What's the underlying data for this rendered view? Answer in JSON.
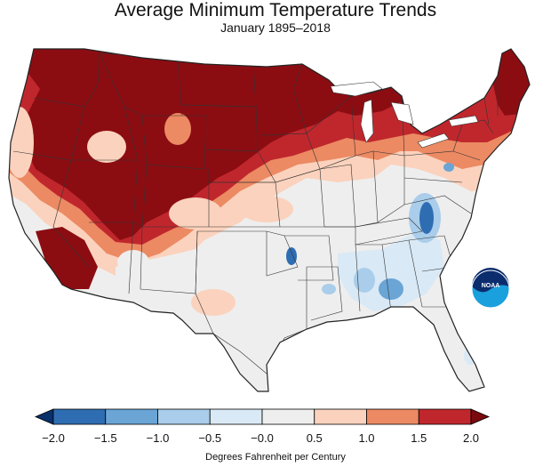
{
  "header": {
    "title": "Average Minimum Temperature Trends",
    "subtitle": "January 1895–2018"
  },
  "legend": {
    "title": "Degrees Fahrenheit per Century",
    "tick_labels": [
      "−2.0",
      "−1.5",
      "−1.0",
      "−0.5",
      "−0.0",
      "0.5",
      "1.0",
      "1.5",
      "2.0"
    ],
    "bins": [
      {
        "range": "< -2.0",
        "color": "#08306b"
      },
      {
        "range": "-2.0 to -1.5",
        "color": "#2f6db3"
      },
      {
        "range": "-1.5 to -1.0",
        "color": "#6aa5d6"
      },
      {
        "range": "-1.0 to -0.5",
        "color": "#a9cdea"
      },
      {
        "range": "-0.5 to 0.0",
        "color": "#d9e9f5"
      },
      {
        "range": "0.0 to 0.5",
        "color": "#eeeeee"
      },
      {
        "range": "0.5 to 1.0",
        "color": "#fbd2bd"
      },
      {
        "range": "1.0 to 1.5",
        "color": "#ec8a63"
      },
      {
        "range": "1.5 to 2.0",
        "color": "#c0272d"
      },
      {
        "range": "> 2.0",
        "color": "#7b0a0e"
      }
    ]
  },
  "map_colors": {
    "strong_warm": "#8b0d12",
    "warm": "#c0272d",
    "light_warm": "#ec8a63",
    "pale_warm": "#fbd2bd",
    "neutral": "#eeeeee",
    "pale_cool": "#d9e9f5",
    "cool": "#a9cdea",
    "mid_cool": "#6aa5d6",
    "strong_cool": "#2f6db3",
    "border": "#333333"
  },
  "logo": {
    "text": "NOAA",
    "icon": "noaa-logo-icon"
  }
}
